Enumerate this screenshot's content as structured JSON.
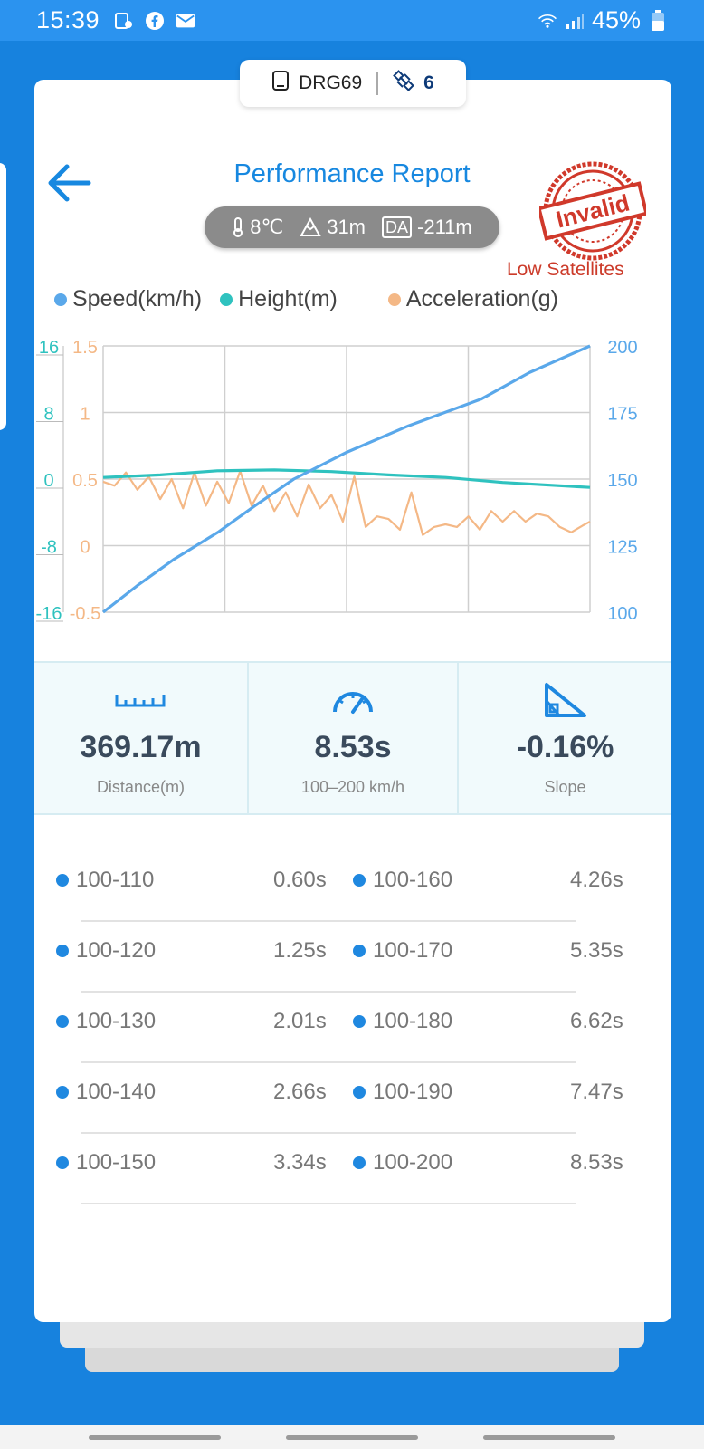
{
  "status_bar": {
    "time": "15:39",
    "battery": "45%",
    "icons": [
      "location-icon",
      "facebook-icon",
      "mail-icon",
      "wifi-icon",
      "signal-icon",
      "battery-icon"
    ]
  },
  "device": {
    "name": "DRG69",
    "satellites": "6"
  },
  "header": {
    "title": "Performance Report",
    "temperature": "8℃",
    "altitude": "31m",
    "da_label": "DA",
    "density_altitude": "-211m",
    "stamp_text": "Invalid",
    "warning": "Low Satellites"
  },
  "legend": [
    {
      "label": "Speed(km/h)",
      "color": "#5aa8ea"
    },
    {
      "label": "Height(m)",
      "color": "#2fc2bf"
    },
    {
      "label": "Acceleration(g)",
      "color": "#f4b886"
    }
  ],
  "chart_data": {
    "type": "line",
    "axes": {
      "height_ticks": [
        "16",
        "8",
        "0",
        "-8",
        "-16"
      ],
      "accel_ticks": [
        "1.5",
        "1",
        "0.5",
        "0",
        "-0.5"
      ],
      "speed_ticks": [
        "200",
        "175",
        "150",
        "125",
        "100"
      ],
      "height_range": [
        -16,
        16
      ],
      "accel_range": [
        -0.5,
        1.5
      ],
      "speed_range": [
        100,
        200
      ]
    },
    "x_range": [
      0,
      8.53
    ],
    "series": [
      {
        "name": "Speed(km/h)",
        "color": "#5aa8ea",
        "axis": "speed",
        "x": [
          0,
          0.6,
          1.25,
          2.01,
          2.66,
          3.34,
          4.26,
          5.35,
          6.62,
          7.47,
          8.53
        ],
        "y": [
          100,
          110,
          120,
          130,
          140,
          150,
          160,
          170,
          180,
          190,
          200
        ]
      },
      {
        "name": "Height(m)",
        "color": "#2fc2bf",
        "axis": "height",
        "x": [
          0,
          1,
          2,
          3,
          4,
          5,
          6,
          7,
          8,
          8.53
        ],
        "y": [
          0.2,
          0.5,
          1.0,
          1.1,
          0.9,
          0.5,
          0.2,
          -0.4,
          -0.8,
          -1.0
        ]
      },
      {
        "name": "Acceleration(g)",
        "color": "#f4b886",
        "axis": "accel",
        "x": [
          0,
          0.2,
          0.4,
          0.6,
          0.8,
          1.0,
          1.2,
          1.4,
          1.6,
          1.8,
          2.0,
          2.2,
          2.4,
          2.6,
          2.8,
          3.0,
          3.2,
          3.4,
          3.6,
          3.8,
          4.0,
          4.2,
          4.4,
          4.6,
          4.8,
          5.0,
          5.2,
          5.4,
          5.6,
          5.8,
          6.0,
          6.2,
          6.4,
          6.6,
          6.8,
          7.0,
          7.2,
          7.4,
          7.6,
          7.8,
          8.0,
          8.2,
          8.4,
          8.53
        ],
        "y": [
          0.48,
          0.45,
          0.55,
          0.42,
          0.52,
          0.35,
          0.5,
          0.28,
          0.55,
          0.3,
          0.48,
          0.32,
          0.56,
          0.3,
          0.45,
          0.26,
          0.4,
          0.22,
          0.46,
          0.28,
          0.38,
          0.18,
          0.52,
          0.14,
          0.22,
          0.2,
          0.12,
          0.4,
          0.08,
          0.14,
          0.16,
          0.14,
          0.22,
          0.12,
          0.26,
          0.18,
          0.26,
          0.18,
          0.24,
          0.22,
          0.14,
          0.1,
          0.15,
          0.18
        ]
      }
    ]
  },
  "stats": [
    {
      "value": "369.17m",
      "label": "Distance(m)",
      "icon": "ruler-icon"
    },
    {
      "value": "8.53s",
      "label": "100–200 km/h",
      "icon": "speedometer-icon"
    },
    {
      "value": "-0.16%",
      "label": "Slope",
      "icon": "slope-icon"
    }
  ],
  "splits": [
    [
      {
        "range": "100-110",
        "time": "0.60s"
      },
      {
        "range": "100-160",
        "time": "4.26s"
      }
    ],
    [
      {
        "range": "100-120",
        "time": "1.25s"
      },
      {
        "range": "100-170",
        "time": "5.35s"
      }
    ],
    [
      {
        "range": "100-130",
        "time": "2.01s"
      },
      {
        "range": "100-180",
        "time": "6.62s"
      }
    ],
    [
      {
        "range": "100-140",
        "time": "2.66s"
      },
      {
        "range": "100-190",
        "time": "7.47s"
      }
    ],
    [
      {
        "range": "100-150",
        "time": "3.34s"
      },
      {
        "range": "100-200",
        "time": "8.53s"
      }
    ]
  ]
}
